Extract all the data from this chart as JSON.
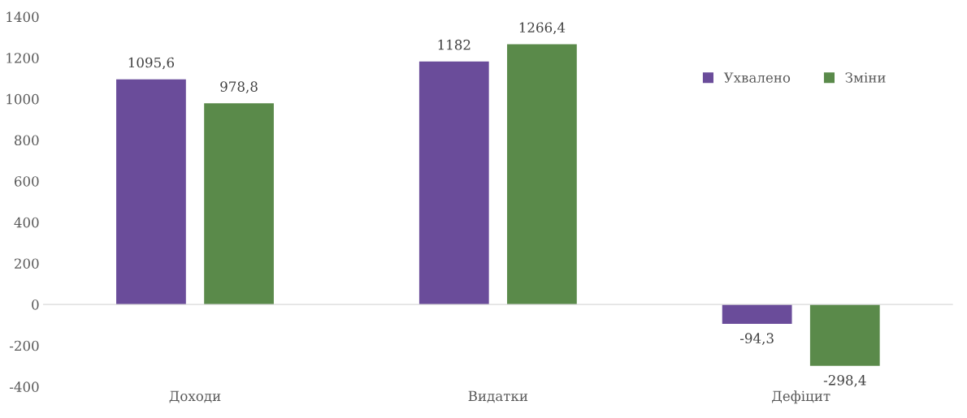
{
  "chart_data": {
    "type": "bar",
    "categories": [
      "Доходи",
      "Видатки",
      "Дефіцит"
    ],
    "series": [
      {
        "name": "Ухвалено",
        "color": "#6a4c9a",
        "values": [
          1095.6,
          1182,
          -94.3
        ],
        "value_labels": [
          "1095,6",
          "1182",
          "-94,3"
        ]
      },
      {
        "name": "Зміни",
        "color": "#5a8a4a",
        "values": [
          978.8,
          1266.4,
          -298.4
        ],
        "value_labels": [
          "978,8",
          "1266,4",
          "-298,4"
        ]
      }
    ],
    "ylim": [
      -400,
      1400
    ],
    "yticks": [
      -400,
      -200,
      0,
      200,
      400,
      600,
      800,
      1000,
      1200,
      1400
    ],
    "legend": "top right"
  }
}
